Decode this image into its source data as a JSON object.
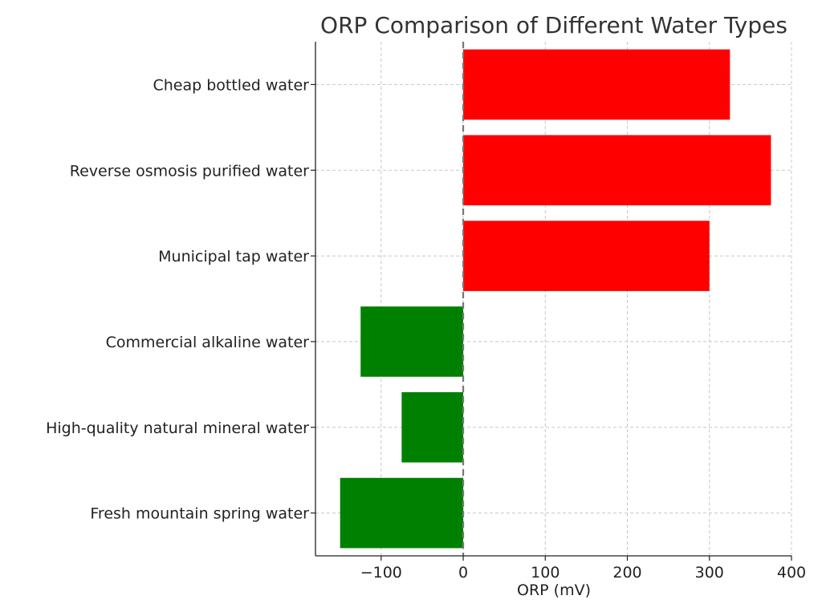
{
  "chart_data": {
    "type": "bar",
    "orientation": "horizontal",
    "title": "ORP Comparison of Different Water Types",
    "xlabel": "ORP (mV)",
    "ylabel": "",
    "xlim": [
      -180,
      400
    ],
    "xticks": [
      -100,
      0,
      100,
      200,
      300,
      400
    ],
    "xtick_labels": [
      "−100",
      "0",
      "100",
      "200",
      "300",
      "400"
    ],
    "grid": true,
    "reference_line": 0,
    "categories": [
      "Cheap bottled water",
      "Reverse osmosis purified water",
      "Municipal tap water",
      "Commercial alkaline water",
      "High-quality natural mineral water",
      "Fresh mountain spring water"
    ],
    "values": [
      325,
      375,
      300,
      -125,
      -75,
      -150
    ],
    "colors": [
      "#ff0000",
      "#ff0000",
      "#ff0000",
      "#008000",
      "#008000",
      "#008000"
    ]
  }
}
